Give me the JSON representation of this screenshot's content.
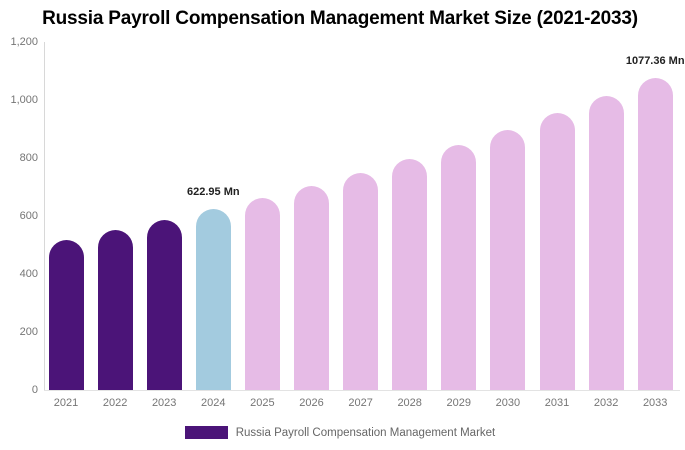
{
  "title": "Russia Payroll Compensation Management Market Size (2021-2033)",
  "chart_data": {
    "type": "bar",
    "title": "Russia Payroll Compensation Management Market Size (2021-2033)",
    "categories": [
      "2021",
      "2022",
      "2023",
      "2024",
      "2025",
      "2026",
      "2027",
      "2028",
      "2029",
      "2030",
      "2031",
      "2032",
      "2033"
    ],
    "values": [
      519,
      551,
      586,
      622.95,
      662,
      704,
      748,
      795,
      845,
      898,
      954,
      1014,
      1077.36
    ],
    "bar_colors": [
      "#4B1478",
      "#4B1478",
      "#4B1478",
      "#A3CBDF",
      "#E6BBE6",
      "#E6BBE6",
      "#E6BBE6",
      "#E6BBE6",
      "#E6BBE6",
      "#E6BBE6",
      "#E6BBE6",
      "#E6BBE6",
      "#E6BBE6"
    ],
    "xlabel": "",
    "ylabel": "",
    "ylim": [
      0,
      1200
    ],
    "yticks": [
      0,
      200,
      400,
      600,
      800,
      1000,
      1200
    ],
    "ytick_labels": [
      "0",
      "200",
      "400",
      "600",
      "800",
      "1,000",
      "1,200"
    ],
    "grid": false,
    "legend_position": "bottom",
    "annotations": [
      {
        "category": "2024",
        "text": "622.95 Mn"
      },
      {
        "category": "2033",
        "text": "1077.36 Mn"
      }
    ],
    "series_colors": {
      "historical": "#4B1478",
      "current_year": "#A3CBDF",
      "forecast": "#E6BBE6"
    }
  },
  "legend": {
    "swatch_color": "#4B1478",
    "label": "Russia Payroll Compensation Management Market"
  }
}
